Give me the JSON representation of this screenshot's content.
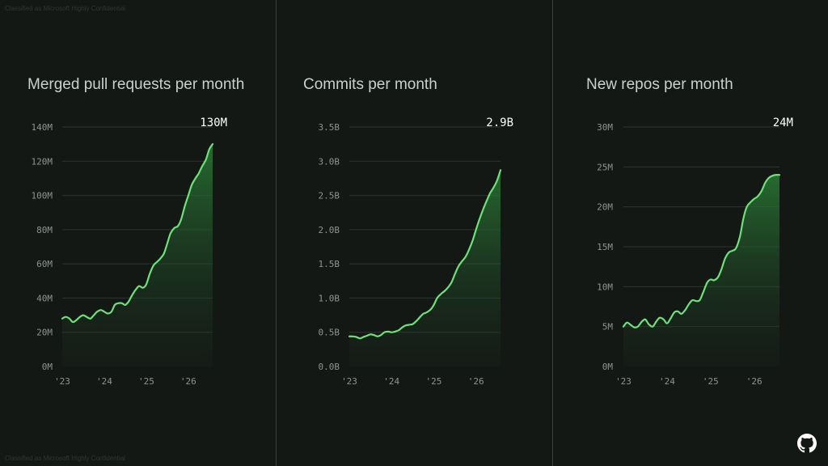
{
  "classification": "Classified as Microsoft Highly Confidential",
  "colors": {
    "line": "#6fe07a",
    "background": "#141815",
    "grid": "#2e3430"
  },
  "chart_data": [
    {
      "type": "area",
      "title": "Merged pull requests per month",
      "headline": "130M",
      "y_ticks": [
        0,
        20,
        40,
        60,
        80,
        100,
        120,
        140
      ],
      "y_tick_labels": [
        "0M",
        "20M",
        "40M",
        "60M",
        "80M",
        "100M",
        "120M",
        "140M"
      ],
      "x_ticks": [
        2023,
        2024,
        2025,
        2026
      ],
      "x_tick_labels": [
        "'23",
        "'24",
        "'25",
        "'26"
      ],
      "ylim": [
        0,
        140
      ],
      "xlim": [
        2023,
        2026.58
      ],
      "grid": true,
      "series": [
        {
          "x": [
            2023.0,
            2023.08,
            2023.17,
            2023.25,
            2023.33,
            2023.42,
            2023.5,
            2023.58,
            2023.67,
            2023.75,
            2023.83,
            2023.92,
            2024.0,
            2024.08,
            2024.17,
            2024.25,
            2024.33,
            2024.42,
            2024.5,
            2024.58,
            2024.67,
            2024.75,
            2024.83,
            2024.92,
            2025.0,
            2025.08,
            2025.17,
            2025.25,
            2025.33,
            2025.42,
            2025.5,
            2025.58,
            2025.67,
            2025.75,
            2025.83,
            2025.92,
            2026.0,
            2026.08,
            2026.17,
            2026.25,
            2026.33,
            2026.42,
            2026.5,
            2026.58
          ],
          "y": [
            28,
            29,
            28,
            26,
            27,
            29,
            30,
            29,
            28,
            30,
            32,
            33,
            32,
            31,
            32,
            36,
            37,
            37,
            36,
            38,
            42,
            45,
            47,
            46,
            48,
            54,
            59,
            61,
            63,
            66,
            72,
            78,
            81,
            82,
            86,
            94,
            100,
            106,
            110,
            113,
            117,
            121,
            127,
            130
          ]
        }
      ]
    },
    {
      "type": "area",
      "title": "Commits per month",
      "headline": "2.9B",
      "y_ticks": [
        0,
        0.5,
        1.0,
        1.5,
        2.0,
        2.5,
        3.0,
        3.5
      ],
      "y_tick_labels": [
        "0.0B",
        "0.5B",
        "1.0B",
        "1.5B",
        "2.0B",
        "2.5B",
        "3.0B",
        "3.5B"
      ],
      "x_ticks": [
        2023,
        2024,
        2025,
        2026
      ],
      "x_tick_labels": [
        "'23",
        "'24",
        "'25",
        "'26"
      ],
      "ylim": [
        0,
        3.5
      ],
      "xlim": [
        2023,
        2026.58
      ],
      "grid": true,
      "series": [
        {
          "x": [
            2023.0,
            2023.08,
            2023.17,
            2023.25,
            2023.33,
            2023.42,
            2023.5,
            2023.58,
            2023.67,
            2023.75,
            2023.83,
            2023.92,
            2024.0,
            2024.08,
            2024.17,
            2024.25,
            2024.33,
            2024.42,
            2024.5,
            2024.58,
            2024.67,
            2024.75,
            2024.83,
            2024.92,
            2025.0,
            2025.08,
            2025.17,
            2025.25,
            2025.33,
            2025.42,
            2025.5,
            2025.58,
            2025.67,
            2025.75,
            2025.83,
            2025.92,
            2026.0,
            2026.08,
            2026.17,
            2026.25,
            2026.33,
            2026.42,
            2026.5,
            2026.58
          ],
          "y": [
            0.44,
            0.44,
            0.43,
            0.41,
            0.43,
            0.45,
            0.47,
            0.46,
            0.44,
            0.46,
            0.5,
            0.51,
            0.5,
            0.51,
            0.53,
            0.57,
            0.6,
            0.61,
            0.62,
            0.66,
            0.72,
            0.77,
            0.79,
            0.83,
            0.9,
            1.0,
            1.06,
            1.1,
            1.15,
            1.23,
            1.35,
            1.46,
            1.54,
            1.6,
            1.7,
            1.84,
            2.0,
            2.15,
            2.3,
            2.42,
            2.53,
            2.62,
            2.72,
            2.87
          ]
        }
      ]
    },
    {
      "type": "area",
      "title": "New repos per month",
      "headline": "24M",
      "y_ticks": [
        0,
        5,
        10,
        15,
        20,
        25,
        30
      ],
      "y_tick_labels": [
        "0M",
        "5M",
        "10M",
        "15M",
        "20M",
        "25M",
        "30M"
      ],
      "x_ticks": [
        2023,
        2024,
        2025,
        2026
      ],
      "x_tick_labels": [
        "'23",
        "'24",
        "'25",
        "'26"
      ],
      "ylim": [
        0,
        30
      ],
      "xlim": [
        2023,
        2026.58
      ],
      "grid": true,
      "series": [
        {
          "x": [
            2023.0,
            2023.08,
            2023.17,
            2023.25,
            2023.33,
            2023.42,
            2023.5,
            2023.58,
            2023.67,
            2023.75,
            2023.83,
            2023.92,
            2024.0,
            2024.08,
            2024.17,
            2024.25,
            2024.33,
            2024.42,
            2024.5,
            2024.58,
            2024.67,
            2024.75,
            2024.83,
            2024.92,
            2025.0,
            2025.08,
            2025.17,
            2025.25,
            2025.33,
            2025.42,
            2025.5,
            2025.58,
            2025.67,
            2025.75,
            2025.83,
            2025.92,
            2026.0,
            2026.08,
            2026.17,
            2026.25,
            2026.33,
            2026.42,
            2026.5,
            2026.58
          ],
          "y": [
            5.0,
            5.5,
            5.2,
            4.9,
            5.0,
            5.6,
            5.9,
            5.3,
            5.0,
            5.6,
            6.1,
            5.9,
            5.4,
            6.0,
            6.8,
            6.9,
            6.6,
            7.1,
            7.8,
            8.3,
            8.2,
            8.3,
            9.3,
            10.5,
            10.9,
            10.8,
            11.2,
            12.2,
            13.5,
            14.3,
            14.5,
            14.8,
            16.2,
            18.5,
            20.0,
            20.6,
            21.0,
            21.3,
            22.0,
            23.0,
            23.6,
            23.9,
            24.0,
            24.0
          ]
        }
      ]
    }
  ]
}
